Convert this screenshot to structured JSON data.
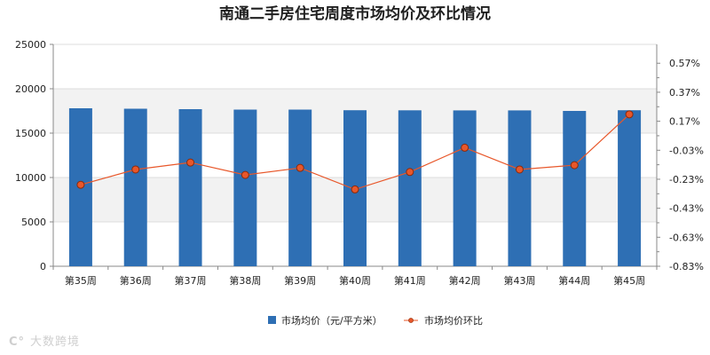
{
  "chart_data": {
    "type": "bar+line",
    "title": "南通二手房住宅周度市场均价及环比情况",
    "categories": [
      "第35周",
      "第36周",
      "第37周",
      "第38周",
      "第39周",
      "第40周",
      "第41周",
      "第42周",
      "第43周",
      "第44周",
      "第45周"
    ],
    "series": [
      {
        "name": "市场均价（元/平方米）",
        "type": "bar",
        "axis": "left",
        "color": "#2e6fb4",
        "values": [
          17800,
          17750,
          17700,
          17650,
          17650,
          17580,
          17570,
          17560,
          17560,
          17500,
          17580
        ]
      },
      {
        "name": "市场均价环比",
        "type": "line",
        "axis": "right",
        "color": "#e8572a",
        "marker_color": "#e8572a",
        "values": [
          -0.2682,
          -0.1628,
          -0.1148,
          -0.2004,
          -0.1516,
          -0.3002,
          -0.1799,
          -0.0123,
          -0.1628,
          -0.1331,
          0.2176
        ]
      }
    ],
    "y_left": {
      "range": [
        0,
        25000
      ],
      "ticks": [
        "0",
        "5000",
        "10000",
        "15000",
        "20000",
        "25000"
      ]
    },
    "y_right": {
      "range": [
        -0.83,
        0.7
      ],
      "ticks": [
        "-0.83%",
        "-0.63%",
        "-0.43%",
        "-0.23%",
        "-0.03%",
        "0.17%",
        "0.37%",
        "0.57%"
      ],
      "tick_values": [
        -0.83,
        -0.63,
        -0.43,
        -0.23,
        -0.03,
        0.17,
        0.37,
        0.57
      ]
    },
    "grid": "horizontal bands",
    "legend_position": "bottom"
  },
  "legend": {
    "bar_label": "市场均价（元/平方米）",
    "line_label": "市场均价环比"
  },
  "watermark": {
    "icon": "C°",
    "text": "大数跨境"
  }
}
